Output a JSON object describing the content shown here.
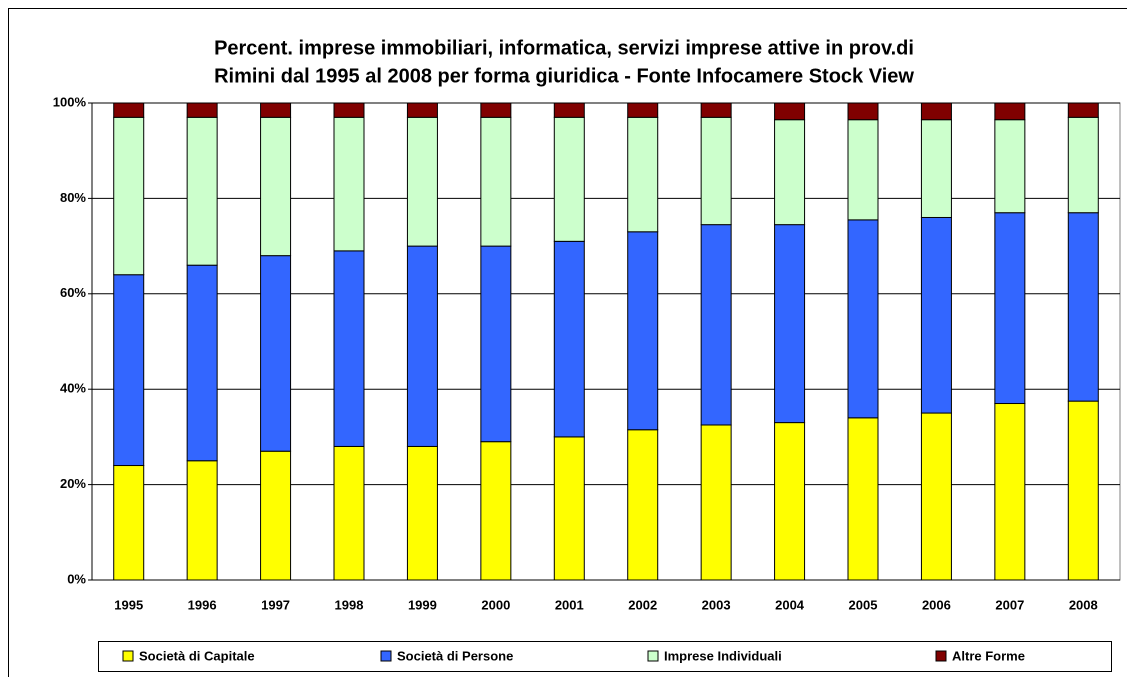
{
  "chart_data": {
    "type": "stacked_bar",
    "title": [
      "Percent. imprese immobiliari, informatica, servizi imprese attive in prov.di",
      "Rimini dal 1995 al 2008 per  forma giuridica - Fonte Infocamere Stock View"
    ],
    "categories": [
      "1995",
      "1996",
      "1997",
      "1998",
      "1999",
      "2000",
      "2001",
      "2002",
      "2003",
      "2004",
      "2005",
      "2006",
      "2007",
      "2008"
    ],
    "series": [
      {
        "name": "Società di Capitale",
        "color": "#ffff00",
        "values": [
          24,
          25,
          27,
          28,
          28,
          29,
          30,
          31.5,
          32.5,
          33,
          34,
          35,
          37,
          37.5
        ]
      },
      {
        "name": "Società di Persone",
        "color": "#3366ff",
        "values": [
          40,
          41,
          41,
          41,
          42,
          41,
          41,
          41.5,
          42,
          41.5,
          41.5,
          41,
          40,
          39.5
        ]
      },
      {
        "name": "Imprese Individuali",
        "color": "#ccffcc",
        "values": [
          33,
          31,
          29,
          28,
          27,
          27,
          26,
          24,
          22.5,
          22,
          21,
          20.5,
          19.5,
          20
        ]
      },
      {
        "name": "Altre Forme",
        "color": "#800000",
        "values": [
          3,
          3,
          3,
          3,
          3,
          3,
          3,
          3,
          3,
          3.5,
          3.5,
          3.5,
          3.5,
          3
        ]
      }
    ],
    "ylim": [
      0,
      100
    ],
    "yticks": [
      {
        "value": 0,
        "label": "0%"
      },
      {
        "value": 20,
        "label": "20%"
      },
      {
        "value": 40,
        "label": "40%"
      },
      {
        "value": 60,
        "label": "60%"
      },
      {
        "value": 80,
        "label": "80%"
      },
      {
        "value": 100,
        "label": "100%"
      }
    ],
    "grid": true,
    "legend": "bottom"
  }
}
